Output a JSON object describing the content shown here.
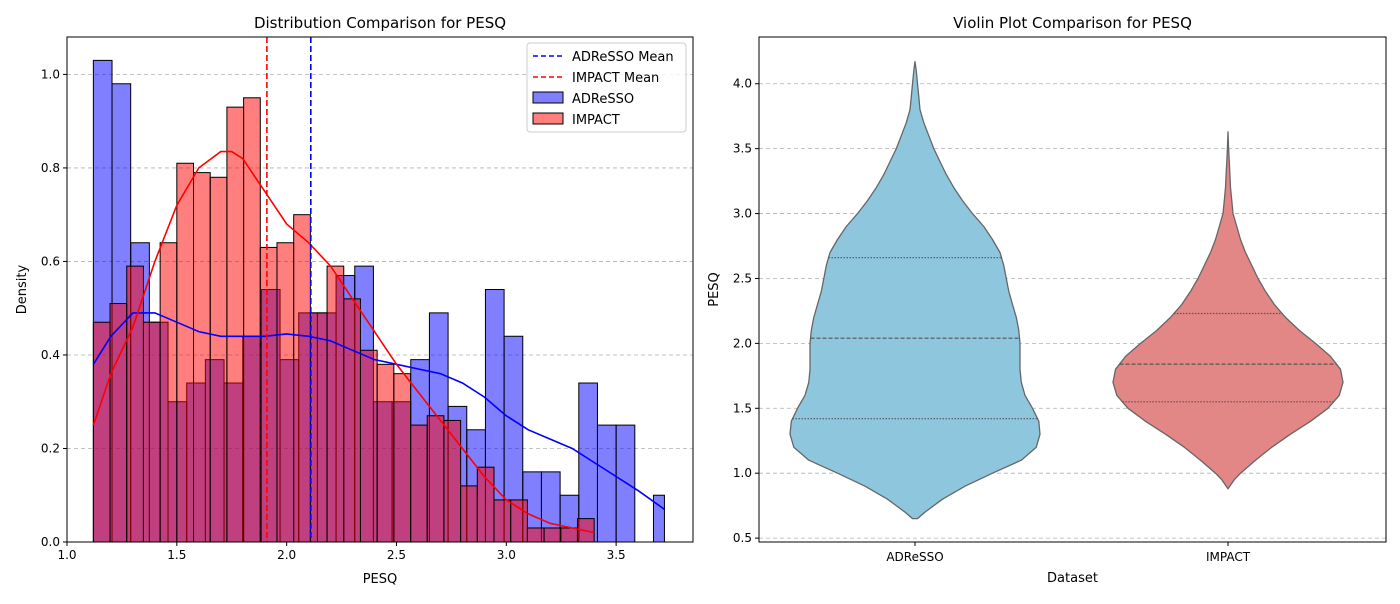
{
  "chart_data": [
    {
      "type": "histogram",
      "title": "Distribution Comparison for PESQ",
      "xlabel": "PESQ",
      "ylabel": "Density",
      "xlim": [
        1.0,
        3.85
      ],
      "ylim": [
        0.0,
        1.08
      ],
      "xticks": [
        "1.0",
        "1.5",
        "2.0",
        "2.5",
        "3.0",
        "3.5"
      ],
      "yticks": [
        "0.0",
        "0.2",
        "0.4",
        "0.6",
        "0.8",
        "1.0"
      ],
      "grid": "y-dashed",
      "legend_position": "top-right",
      "legend": [
        "ADReSSO Mean",
        "IMPACT Mean",
        "ADReSSO",
        "IMPACT"
      ],
      "series": [
        {
          "name": "ADReSSO",
          "color": "#0000ff",
          "bin_edges": [
            1.12,
            1.205,
            1.29,
            1.375,
            1.46,
            1.545,
            1.63,
            1.715,
            1.8,
            1.885,
            1.97,
            2.055,
            2.14,
            2.225,
            2.31,
            2.395,
            2.48,
            2.565,
            2.65,
            2.735,
            2.82,
            2.905,
            2.99,
            3.075,
            3.16,
            3.245,
            3.33,
            3.415,
            3.5,
            3.585,
            3.67,
            3.72
          ],
          "densities": [
            1.03,
            0.98,
            0.64,
            0.47,
            0.3,
            0.34,
            0.39,
            0.34,
            0.44,
            0.54,
            0.39,
            0.49,
            0.49,
            0.57,
            0.59,
            0.3,
            0.3,
            0.39,
            0.49,
            0.29,
            0.24,
            0.54,
            0.44,
            0.15,
            0.15,
            0.1,
            0.34,
            0.25,
            0.25,
            0.0,
            0.1
          ],
          "mean": 2.11,
          "kde": [
            [
              1.12,
              0.38
            ],
            [
              1.2,
              0.44
            ],
            [
              1.3,
              0.49
            ],
            [
              1.4,
              0.49
            ],
            [
              1.5,
              0.47
            ],
            [
              1.6,
              0.45
            ],
            [
              1.7,
              0.44
            ],
            [
              1.8,
              0.44
            ],
            [
              1.9,
              0.44
            ],
            [
              2.0,
              0.445
            ],
            [
              2.1,
              0.44
            ],
            [
              2.2,
              0.43
            ],
            [
              2.3,
              0.41
            ],
            [
              2.4,
              0.39
            ],
            [
              2.5,
              0.38
            ],
            [
              2.6,
              0.37
            ],
            [
              2.7,
              0.36
            ],
            [
              2.8,
              0.34
            ],
            [
              2.9,
              0.31
            ],
            [
              3.0,
              0.27
            ],
            [
              3.1,
              0.24
            ],
            [
              3.2,
              0.22
            ],
            [
              3.3,
              0.2
            ],
            [
              3.4,
              0.17
            ],
            [
              3.5,
              0.14
            ],
            [
              3.6,
              0.11
            ],
            [
              3.72,
              0.07
            ]
          ]
        },
        {
          "name": "IMPACT",
          "color": "#ff0000",
          "bin_edges": [
            1.12,
            1.196,
            1.272,
            1.348,
            1.424,
            1.5,
            1.576,
            1.652,
            1.728,
            1.804,
            1.88,
            1.956,
            2.032,
            2.108,
            2.184,
            2.26,
            2.336,
            2.412,
            2.488,
            2.564,
            2.64,
            2.716,
            2.792,
            2.868,
            2.944,
            3.02,
            3.096,
            3.172,
            3.248,
            3.324,
            3.4
          ],
          "densities": [
            0.47,
            0.51,
            0.59,
            0.47,
            0.64,
            0.81,
            0.79,
            0.78,
            0.93,
            0.95,
            0.63,
            0.64,
            0.7,
            0.49,
            0.59,
            0.52,
            0.41,
            0.38,
            0.36,
            0.25,
            0.27,
            0.26,
            0.12,
            0.16,
            0.09,
            0.09,
            0.03,
            0.03,
            0.03,
            0.05
          ],
          "mean": 1.91,
          "kde": [
            [
              1.12,
              0.25
            ],
            [
              1.2,
              0.36
            ],
            [
              1.3,
              0.46
            ],
            [
              1.4,
              0.6
            ],
            [
              1.5,
              0.72
            ],
            [
              1.6,
              0.8
            ],
            [
              1.7,
              0.835
            ],
            [
              1.75,
              0.835
            ],
            [
              1.8,
              0.82
            ],
            [
              1.9,
              0.75
            ],
            [
              2.0,
              0.68
            ],
            [
              2.1,
              0.64
            ],
            [
              2.2,
              0.59
            ],
            [
              2.3,
              0.52
            ],
            [
              2.4,
              0.45
            ],
            [
              2.5,
              0.38
            ],
            [
              2.6,
              0.32
            ],
            [
              2.7,
              0.26
            ],
            [
              2.8,
              0.2
            ],
            [
              2.9,
              0.14
            ],
            [
              3.0,
              0.09
            ],
            [
              3.1,
              0.06
            ],
            [
              3.2,
              0.04
            ],
            [
              3.3,
              0.03
            ],
            [
              3.4,
              0.02
            ]
          ]
        }
      ]
    },
    {
      "type": "violin",
      "title": "Violin Plot Comparison for PESQ",
      "xlabel": "Dataset",
      "ylabel": "PESQ",
      "categories": [
        "ADReSSO",
        "IMPACT"
      ],
      "ylim": [
        0.47,
        4.36
      ],
      "yticks": [
        "0.5",
        "1.0",
        "1.5",
        "2.0",
        "2.5",
        "3.0",
        "3.5",
        "4.0"
      ],
      "grid": "y-dashed",
      "series": [
        {
          "name": "ADReSSO",
          "color": "#8ec6de",
          "quartiles": [
            1.42,
            2.04,
            2.66
          ],
          "profile": [
            [
              0.65,
              0.02
            ],
            [
              0.7,
              0.08
            ],
            [
              0.8,
              0.22
            ],
            [
              0.9,
              0.4
            ],
            [
              1.0,
              0.62
            ],
            [
              1.1,
              0.85
            ],
            [
              1.2,
              0.97
            ],
            [
              1.3,
              1.0
            ],
            [
              1.4,
              0.99
            ],
            [
              1.5,
              0.94
            ],
            [
              1.6,
              0.88
            ],
            [
              1.7,
              0.85
            ],
            [
              1.8,
              0.84
            ],
            [
              1.9,
              0.84
            ],
            [
              2.0,
              0.84
            ],
            [
              2.1,
              0.83
            ],
            [
              2.2,
              0.81
            ],
            [
              2.3,
              0.78
            ],
            [
              2.4,
              0.75
            ],
            [
              2.5,
              0.73
            ],
            [
              2.6,
              0.71
            ],
            [
              2.7,
              0.68
            ],
            [
              2.8,
              0.62
            ],
            [
              2.9,
              0.55
            ],
            [
              3.0,
              0.46
            ],
            [
              3.1,
              0.38
            ],
            [
              3.2,
              0.31
            ],
            [
              3.3,
              0.25
            ],
            [
              3.4,
              0.2
            ],
            [
              3.5,
              0.15
            ],
            [
              3.6,
              0.11
            ],
            [
              3.7,
              0.07
            ],
            [
              3.8,
              0.04
            ],
            [
              3.9,
              0.03
            ],
            [
              4.0,
              0.02
            ],
            [
              4.1,
              0.01
            ],
            [
              4.17,
              0.0
            ]
          ]
        },
        {
          "name": "IMPACT",
          "color": "#e38686",
          "quartiles": [
            1.55,
            1.84,
            2.23
          ],
          "profile": [
            [
              0.88,
              0.0
            ],
            [
              0.95,
              0.05
            ],
            [
              1.0,
              0.1
            ],
            [
              1.1,
              0.22
            ],
            [
              1.2,
              0.35
            ],
            [
              1.3,
              0.5
            ],
            [
              1.4,
              0.66
            ],
            [
              1.5,
              0.8
            ],
            [
              1.6,
              0.89
            ],
            [
              1.7,
              0.92
            ],
            [
              1.8,
              0.9
            ],
            [
              1.9,
              0.82
            ],
            [
              2.0,
              0.7
            ],
            [
              2.1,
              0.57
            ],
            [
              2.2,
              0.46
            ],
            [
              2.3,
              0.37
            ],
            [
              2.4,
              0.3
            ],
            [
              2.5,
              0.24
            ],
            [
              2.6,
              0.19
            ],
            [
              2.7,
              0.14
            ],
            [
              2.8,
              0.1
            ],
            [
              2.9,
              0.07
            ],
            [
              3.0,
              0.04
            ],
            [
              3.1,
              0.03
            ],
            [
              3.2,
              0.02
            ],
            [
              3.3,
              0.015
            ],
            [
              3.4,
              0.01
            ],
            [
              3.5,
              0.005
            ],
            [
              3.63,
              0.0
            ]
          ]
        }
      ]
    }
  ]
}
